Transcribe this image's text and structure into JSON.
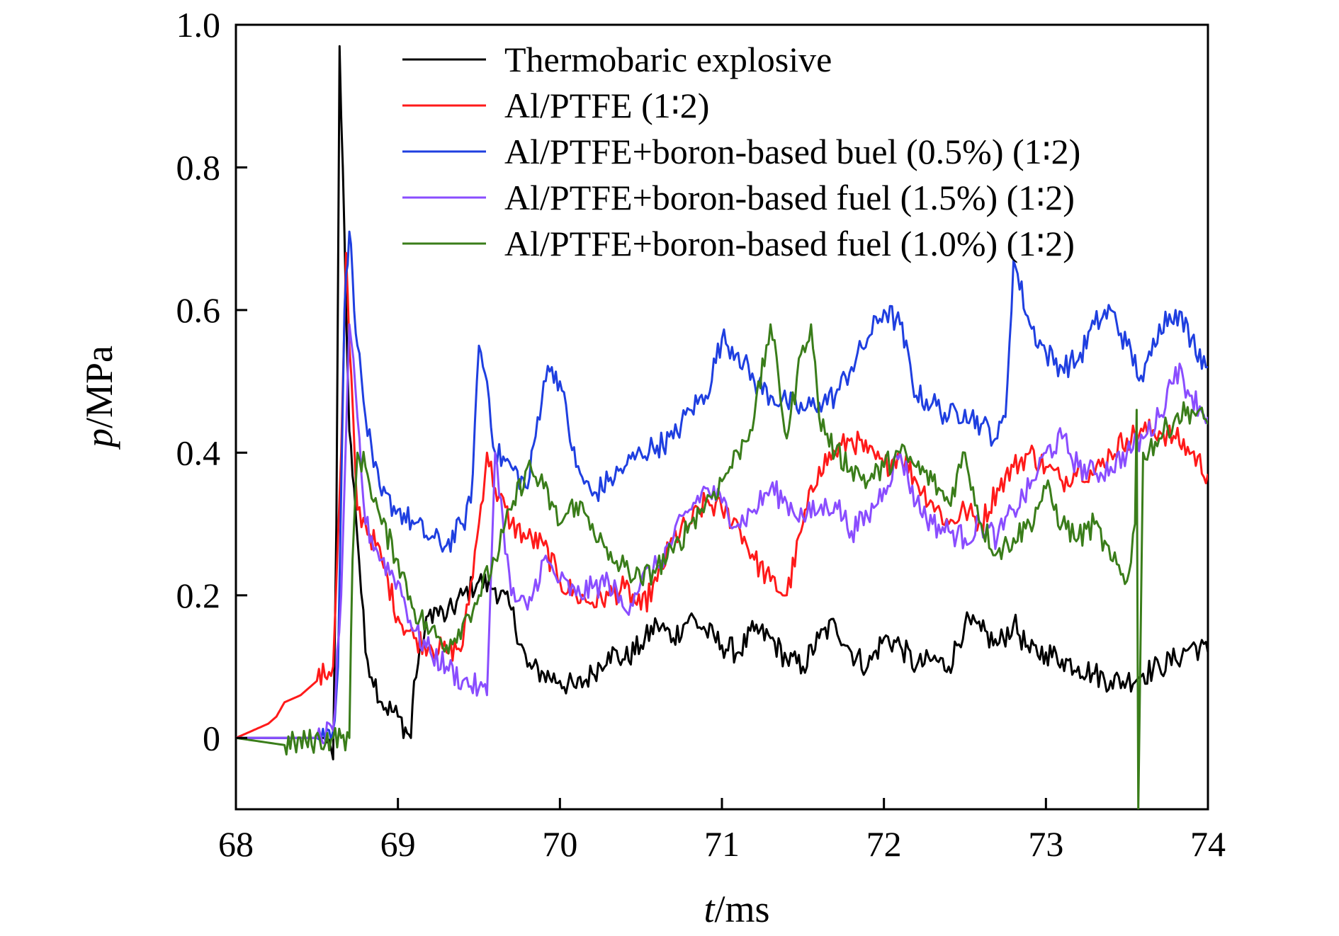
{
  "chart_data": {
    "type": "line",
    "title": "",
    "xlabel_italic": "t",
    "xlabel_unit": "/ms",
    "ylabel_italic": "p",
    "ylabel_unit": "/MPa",
    "xlim": [
      68,
      74
    ],
    "ylim": [
      -0.1,
      1.0
    ],
    "xticks": [
      68,
      69,
      70,
      71,
      72,
      73,
      74
    ],
    "xtick_labels": [
      "68",
      "69",
      "70",
      "71",
      "72",
      "73",
      "74"
    ],
    "yticks": [
      0,
      0.2,
      0.4,
      0.6,
      0.8,
      1.0
    ],
    "ytick_labels": [
      "0",
      "0.2",
      "0.4",
      "0.6",
      "0.8",
      "1.0"
    ],
    "grid": false,
    "legend_position": "top-right",
    "series": [
      {
        "name": "Thermobaric explosive",
        "color": "#000000",
        "x": [
          68.0,
          68.3,
          68.55,
          68.6,
          68.62,
          68.64,
          68.66,
          68.68,
          68.7,
          68.73,
          68.76,
          68.8,
          68.9,
          69.0,
          69.08,
          69.1,
          69.2,
          69.3,
          69.4,
          69.5,
          69.6,
          69.7,
          69.8,
          69.9,
          70.0,
          70.1,
          70.2,
          70.3,
          70.4,
          70.5,
          70.6,
          70.7,
          70.8,
          70.9,
          71.0,
          71.1,
          71.2,
          71.3,
          71.4,
          71.5,
          71.6,
          71.7,
          71.8,
          71.9,
          72.0,
          72.1,
          72.2,
          72.3,
          72.4,
          72.5,
          72.6,
          72.7,
          72.8,
          72.9,
          73.0,
          73.1,
          73.2,
          73.3,
          73.4,
          73.5,
          73.6,
          73.7,
          73.8,
          73.9,
          74.0
        ],
        "y": [
          0.0,
          0.0,
          0.0,
          -0.03,
          0.3,
          0.97,
          0.8,
          0.6,
          0.43,
          0.35,
          0.25,
          0.12,
          0.05,
          0.03,
          0.0,
          0.08,
          0.18,
          0.17,
          0.2,
          0.22,
          0.21,
          0.18,
          0.1,
          0.09,
          0.08,
          0.07,
          0.09,
          0.12,
          0.11,
          0.13,
          0.16,
          0.14,
          0.17,
          0.15,
          0.13,
          0.12,
          0.15,
          0.14,
          0.11,
          0.1,
          0.14,
          0.16,
          0.12,
          0.1,
          0.14,
          0.13,
          0.1,
          0.11,
          0.1,
          0.16,
          0.15,
          0.13,
          0.16,
          0.12,
          0.12,
          0.11,
          0.1,
          0.09,
          0.08,
          0.08,
          0.09,
          0.1,
          0.11,
          0.13,
          0.12
        ]
      },
      {
        "name": "Al/PTFE (1∶2)",
        "color": "#ff1a1a",
        "x": [
          68.0,
          68.1,
          68.2,
          68.25,
          68.3,
          68.4,
          68.5,
          68.6,
          68.65,
          68.68,
          68.7,
          68.75,
          68.8,
          68.9,
          69.0,
          69.1,
          69.2,
          69.3,
          69.4,
          69.5,
          69.55,
          69.6,
          69.7,
          69.8,
          69.9,
          70.0,
          70.1,
          70.2,
          70.3,
          70.4,
          70.5,
          70.6,
          70.7,
          70.8,
          70.9,
          71.0,
          71.1,
          71.2,
          71.3,
          71.4,
          71.5,
          71.6,
          71.7,
          71.8,
          71.9,
          72.0,
          72.1,
          72.2,
          72.3,
          72.4,
          72.5,
          72.6,
          72.7,
          72.8,
          72.9,
          73.0,
          73.1,
          73.2,
          73.3,
          73.4,
          73.5,
          73.6,
          73.7,
          73.8,
          73.9,
          74.0
        ],
        "y": [
          0.0,
          0.01,
          0.02,
          0.03,
          0.05,
          0.06,
          0.08,
          0.1,
          0.4,
          0.68,
          0.55,
          0.32,
          0.3,
          0.25,
          0.17,
          0.14,
          0.13,
          0.12,
          0.13,
          0.3,
          0.4,
          0.35,
          0.3,
          0.28,
          0.27,
          0.22,
          0.2,
          0.19,
          0.2,
          0.21,
          0.18,
          0.22,
          0.28,
          0.3,
          0.33,
          0.32,
          0.3,
          0.25,
          0.22,
          0.2,
          0.3,
          0.38,
          0.4,
          0.42,
          0.4,
          0.38,
          0.4,
          0.36,
          0.33,
          0.3,
          0.32,
          0.3,
          0.35,
          0.38,
          0.4,
          0.38,
          0.36,
          0.38,
          0.37,
          0.4,
          0.42,
          0.43,
          0.43,
          0.42,
          0.4,
          0.37
        ]
      },
      {
        "name": "Al/PTFE+boron-based buel (0.5%) (1∶2)",
        "color": "#1f3fe0",
        "x": [
          68.0,
          68.3,
          68.5,
          68.6,
          68.63,
          68.67,
          68.7,
          68.72,
          68.75,
          68.8,
          68.85,
          68.9,
          69.0,
          69.1,
          69.2,
          69.3,
          69.4,
          69.45,
          69.5,
          69.55,
          69.6,
          69.7,
          69.8,
          69.9,
          69.95,
          70.0,
          70.1,
          70.2,
          70.3,
          70.4,
          70.5,
          70.6,
          70.7,
          70.8,
          70.9,
          71.0,
          71.1,
          71.2,
          71.3,
          71.4,
          71.5,
          71.6,
          71.7,
          71.8,
          71.9,
          72.0,
          72.1,
          72.2,
          72.3,
          72.4,
          72.5,
          72.6,
          72.7,
          72.75,
          72.8,
          72.9,
          73.0,
          73.1,
          73.2,
          73.3,
          73.4,
          73.5,
          73.6,
          73.7,
          73.8,
          73.9,
          74.0
        ],
        "y": [
          0.0,
          0.0,
          0.0,
          0.01,
          0.1,
          0.6,
          0.71,
          0.65,
          0.55,
          0.45,
          0.38,
          0.34,
          0.32,
          0.3,
          0.28,
          0.27,
          0.3,
          0.33,
          0.55,
          0.5,
          0.4,
          0.38,
          0.35,
          0.5,
          0.52,
          0.5,
          0.38,
          0.34,
          0.36,
          0.38,
          0.4,
          0.41,
          0.42,
          0.46,
          0.48,
          0.56,
          0.54,
          0.5,
          0.48,
          0.47,
          0.46,
          0.47,
          0.48,
          0.52,
          0.56,
          0.6,
          0.58,
          0.48,
          0.47,
          0.45,
          0.46,
          0.44,
          0.42,
          0.45,
          0.67,
          0.58,
          0.54,
          0.52,
          0.53,
          0.58,
          0.6,
          0.55,
          0.5,
          0.58,
          0.6,
          0.56,
          0.52
        ]
      },
      {
        "name": "Al/PTFE+boron-based fuel (1.5%) (1∶2)",
        "color": "#8a4dff",
        "x": [
          68.0,
          68.3,
          68.5,
          68.6,
          68.65,
          68.7,
          68.75,
          68.8,
          68.9,
          69.0,
          69.1,
          69.2,
          69.3,
          69.4,
          69.5,
          69.55,
          69.6,
          69.65,
          69.7,
          69.8,
          69.9,
          70.0,
          70.1,
          70.2,
          70.3,
          70.4,
          70.5,
          70.6,
          70.7,
          70.8,
          70.9,
          71.0,
          71.1,
          71.2,
          71.3,
          71.4,
          71.5,
          71.6,
          71.7,
          71.8,
          71.9,
          72.0,
          72.1,
          72.2,
          72.3,
          72.4,
          72.5,
          72.6,
          72.7,
          72.8,
          72.9,
          73.0,
          73.1,
          73.2,
          73.3,
          73.4,
          73.5,
          73.6,
          73.7,
          73.8,
          73.9,
          74.0
        ],
        "y": [
          0.0,
          0.0,
          0.0,
          0.01,
          0.2,
          0.58,
          0.45,
          0.3,
          0.25,
          0.22,
          0.15,
          0.12,
          0.1,
          0.08,
          0.07,
          0.06,
          0.4,
          0.3,
          0.2,
          0.18,
          0.25,
          0.22,
          0.2,
          0.21,
          0.22,
          0.18,
          0.22,
          0.24,
          0.28,
          0.32,
          0.35,
          0.33,
          0.3,
          0.32,
          0.35,
          0.33,
          0.31,
          0.32,
          0.33,
          0.29,
          0.31,
          0.35,
          0.4,
          0.33,
          0.3,
          0.29,
          0.28,
          0.3,
          0.28,
          0.32,
          0.35,
          0.4,
          0.42,
          0.38,
          0.37,
          0.38,
          0.4,
          0.42,
          0.45,
          0.52,
          0.48,
          0.45
        ]
      },
      {
        "name": "Al/PTFE+boron-based fuel (1.0%) (1∶2)",
        "color": "#3a7d1a",
        "x": [
          68.0,
          68.3,
          68.6,
          68.65,
          68.7,
          68.72,
          68.75,
          68.8,
          68.9,
          69.0,
          69.1,
          69.2,
          69.3,
          69.4,
          69.5,
          69.6,
          69.7,
          69.8,
          69.9,
          70.0,
          70.1,
          70.2,
          70.3,
          70.4,
          70.5,
          70.6,
          70.7,
          70.8,
          70.9,
          71.0,
          71.1,
          71.2,
          71.3,
          71.4,
          71.5,
          71.55,
          71.6,
          71.7,
          71.8,
          71.9,
          72.0,
          72.1,
          72.2,
          72.3,
          72.4,
          72.5,
          72.6,
          72.7,
          72.8,
          72.9,
          73.0,
          73.1,
          73.2,
          73.3,
          73.4,
          73.5,
          73.55,
          73.56,
          73.57,
          73.6,
          73.7,
          73.8,
          73.9,
          74.0
        ],
        "y": [
          0.0,
          -0.01,
          0.0,
          0.0,
          0.0,
          0.25,
          0.4,
          0.38,
          0.3,
          0.25,
          0.18,
          0.15,
          0.13,
          0.16,
          0.2,
          0.25,
          0.32,
          0.38,
          0.35,
          0.3,
          0.33,
          0.3,
          0.25,
          0.24,
          0.22,
          0.24,
          0.26,
          0.3,
          0.33,
          0.36,
          0.4,
          0.45,
          0.58,
          0.42,
          0.55,
          0.58,
          0.45,
          0.4,
          0.38,
          0.36,
          0.38,
          0.4,
          0.38,
          0.36,
          0.33,
          0.4,
          0.3,
          0.26,
          0.28,
          0.3,
          0.35,
          0.3,
          0.28,
          0.3,
          0.25,
          0.22,
          0.3,
          0.46,
          -0.1,
          0.4,
          0.42,
          0.45,
          0.46,
          0.44
        ]
      }
    ]
  }
}
